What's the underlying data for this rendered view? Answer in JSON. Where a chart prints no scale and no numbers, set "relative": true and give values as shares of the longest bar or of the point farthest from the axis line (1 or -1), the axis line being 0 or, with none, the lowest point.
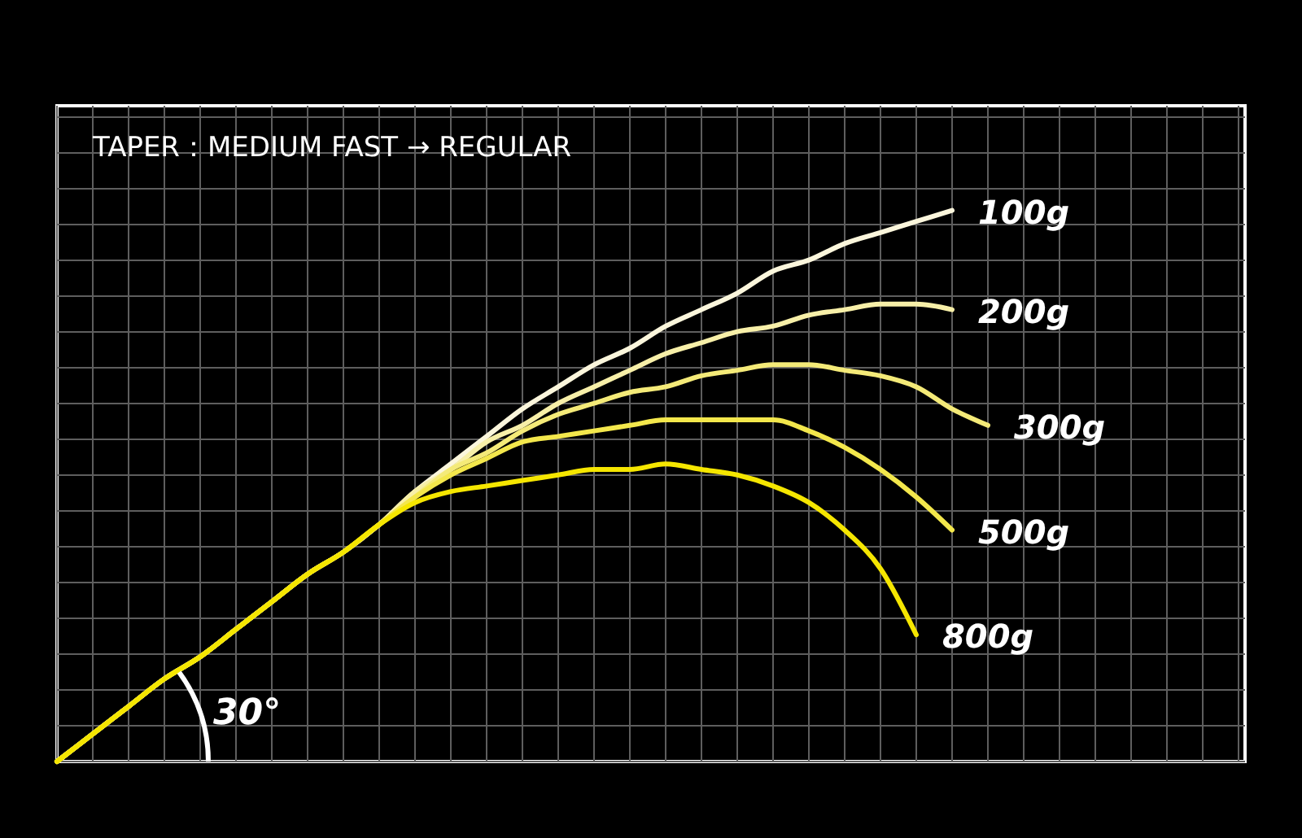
{
  "chart_data": {
    "type": "line",
    "title": "TAPER：MEDIUM FAST → REGULAR",
    "relative": true,
    "grid": true,
    "categories": [
      null,
      null,
      null,
      null,
      null,
      null,
      null,
      null,
      null,
      null,
      null,
      null,
      null,
      null,
      null,
      null,
      null,
      null,
      null,
      null,
      null,
      null,
      null,
      null,
      null,
      null,
      null
    ],
    "annotations": [
      "30°"
    ],
    "series": [
      {
        "name": "100g",
        "color": "#fbf6dc",
        "values": [
          0,
          0.05,
          0.1,
          0.15,
          0.19,
          0.24,
          0.29,
          0.34,
          0.38,
          0.43,
          0.49,
          0.54,
          0.59,
          0.64,
          0.68,
          0.72,
          0.75,
          0.79,
          0.82,
          0.85,
          0.89,
          0.91,
          0.94,
          0.96,
          0.98,
          1,
          null
        ]
      },
      {
        "name": "200g",
        "color": "#f7efa8",
        "values": [
          0,
          0.05,
          0.1,
          0.15,
          0.19,
          0.24,
          0.29,
          0.34,
          0.38,
          0.43,
          0.49,
          0.53,
          0.58,
          0.61,
          0.65,
          0.68,
          0.71,
          0.74,
          0.76,
          0.78,
          0.79,
          0.81,
          0.82,
          0.83,
          0.83,
          0.82,
          null
        ]
      },
      {
        "name": "300g",
        "color": "#f4ea78",
        "values": [
          0,
          0.05,
          0.1,
          0.15,
          0.19,
          0.24,
          0.29,
          0.34,
          0.38,
          0.43,
          0.48,
          0.53,
          0.56,
          0.6,
          0.63,
          0.65,
          0.67,
          0.68,
          0.7,
          0.71,
          0.72,
          0.72,
          0.71,
          0.7,
          0.68,
          0.64,
          0.61
        ]
      },
      {
        "name": "500g",
        "color": "#f3e74c",
        "values": [
          0,
          0.05,
          0.1,
          0.15,
          0.19,
          0.24,
          0.29,
          0.34,
          0.38,
          0.43,
          0.48,
          0.52,
          0.55,
          0.58,
          0.59,
          0.6,
          0.61,
          0.62,
          0.62,
          0.62,
          0.62,
          0.6,
          0.57,
          0.53,
          0.48,
          0.42,
          null
        ]
      },
      {
        "name": "800g",
        "color": "#f5e600",
        "values": [
          0,
          0.05,
          0.1,
          0.15,
          0.19,
          0.24,
          0.29,
          0.34,
          0.38,
          0.43,
          0.47,
          0.49,
          0.5,
          0.51,
          0.52,
          0.53,
          0.53,
          0.54,
          0.53,
          0.52,
          0.5,
          0.47,
          0.42,
          0.35,
          0.23,
          null,
          null
        ]
      }
    ]
  }
}
